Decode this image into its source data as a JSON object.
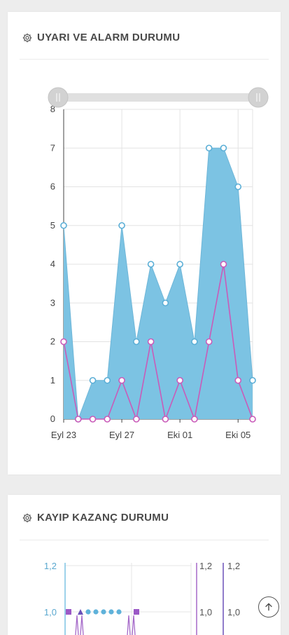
{
  "cards": [
    {
      "title": "UYARI VE ALARM DURUMU",
      "icon": "gear-icon"
    },
    {
      "title": "KAYIP KAZANÇ DURUMU",
      "icon": "gear-icon"
    }
  ],
  "scroll_top_icon": "arrow-up-icon",
  "chart_data": [
    {
      "type": "area",
      "x": [
        "Eyl 23",
        "Eyl 24",
        "Eyl 25",
        "Eyl 26",
        "Eyl 27",
        "Eyl 28",
        "Eyl 29",
        "Eyl 30",
        "Eki 01",
        "Eki 02",
        "Eki 03",
        "Eki 04",
        "Eki 05",
        "Eki 06"
      ],
      "x_tick_labels": [
        "Eyl 23",
        "Eyl 27",
        "Eki 01",
        "Eki 05"
      ],
      "series": [
        {
          "values": [
            5,
            0,
            1,
            1,
            5,
            2,
            4,
            3,
            4,
            2,
            7,
            7,
            6,
            1
          ],
          "color": "#7cc3e3"
        },
        {
          "values": [
            2,
            0,
            0,
            0,
            1,
            0,
            2,
            0,
            1,
            0,
            2,
            4,
            1,
            0
          ],
          "color": "#c95bb9"
        }
      ],
      "ylim": [
        0,
        8
      ],
      "y_ticks": [
        "0",
        "1",
        "2",
        "3",
        "4",
        "5",
        "6",
        "7",
        "8"
      ],
      "grid": true,
      "range_slider": true
    },
    {
      "type": "line",
      "y_ticks_left": [
        "1,2",
        "1,0"
      ],
      "y_ticks_right": [
        "1,2",
        "1,0"
      ],
      "y_ticks_right2": [
        "1,2",
        "1,0"
      ],
      "grid": true
    }
  ]
}
